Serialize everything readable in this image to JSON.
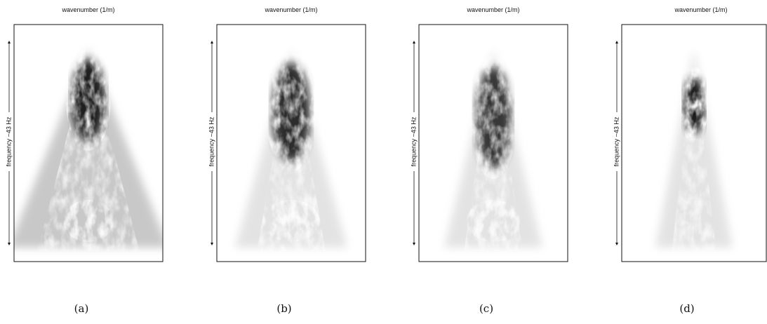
{
  "panels": [
    {
      "x_label": "wavenumber (1/m)",
      "y_label": "frequency ~43 Hz",
      "caption": "(a)"
    },
    {
      "x_label": "wavenumber (1/m)",
      "y_label": "frequency ~43 Hz",
      "caption": "(b)"
    },
    {
      "x_label": "wavenumber (1/m)",
      "y_label": "frequency ~43 Hz",
      "caption": "(c)"
    },
    {
      "x_label": "wavenumber (1/m)",
      "y_label": "frequency ~43 Hz",
      "caption": "(d)"
    }
  ]
}
